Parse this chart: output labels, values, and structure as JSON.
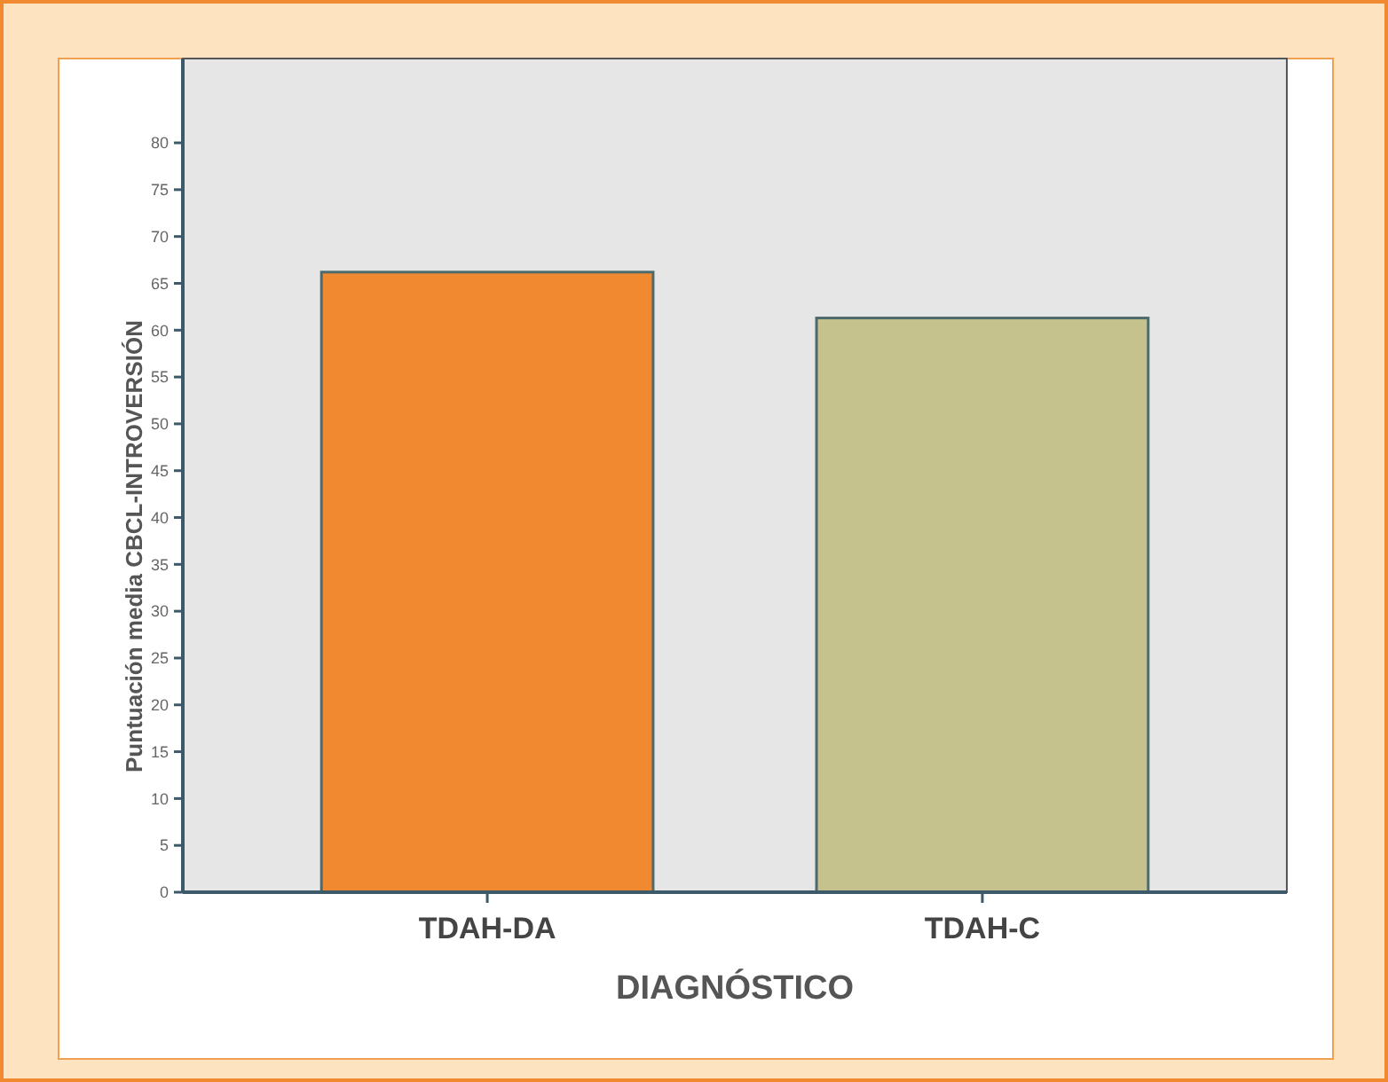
{
  "chart_data": {
    "type": "bar",
    "xlabel": "DIAGNÓSTICO",
    "ylabel": "Puntuación media CBCL-INTROVERSIÓN",
    "categories": [
      "TDAH-DA",
      "TDAH-C"
    ],
    "values": [
      66.2,
      61.3
    ],
    "colors": [
      "#f0892f",
      "#c6c28e"
    ],
    "ylim": [
      0,
      89
    ],
    "yticks": [
      0,
      5,
      10,
      15,
      20,
      25,
      30,
      35,
      40,
      45,
      50,
      55,
      60,
      65,
      70,
      75,
      80
    ]
  }
}
